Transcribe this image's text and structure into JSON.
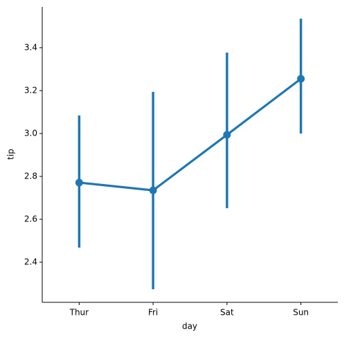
{
  "chart_data": {
    "type": "pointplot",
    "x_label": "day",
    "y_label": "tip",
    "categories": [
      "Thur",
      "Fri",
      "Sat",
      "Sun"
    ],
    "series": [
      {
        "color": "#1f77b4",
        "values": [
          2.771,
          2.735,
          2.994,
          3.255
        ],
        "ci_low": [
          2.468,
          2.274,
          2.652,
          3.0
        ],
        "ci_high": [
          3.084,
          3.194,
          3.377,
          3.535
        ]
      }
    ],
    "ylim": [
      2.213,
      3.59
    ],
    "yticks": [
      2.4,
      2.6,
      2.8,
      {
        "value": 3,
        "label": "3.0"
      },
      3.2,
      3.4
    ],
    "grid": false
  }
}
